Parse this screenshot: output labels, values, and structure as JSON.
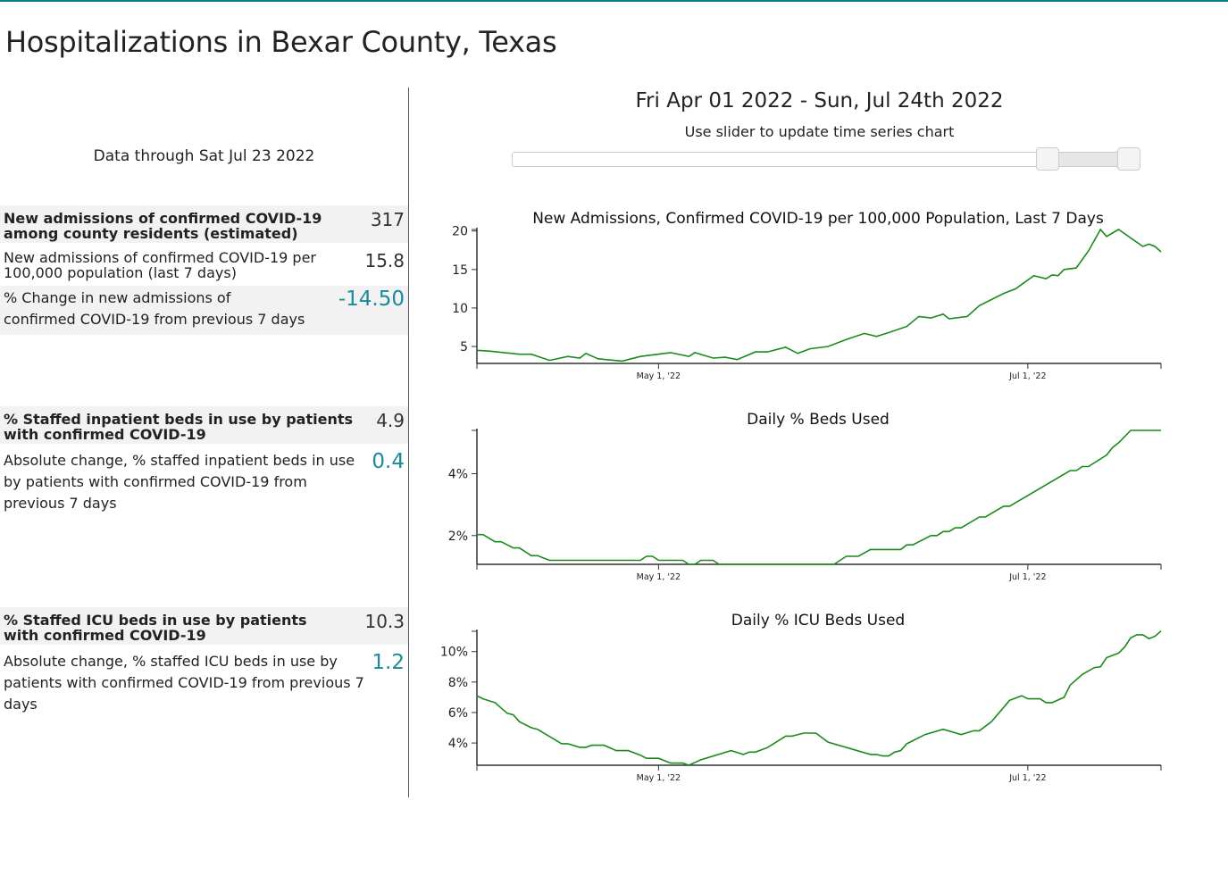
{
  "page": {
    "title": "Hospitalizations in Bexar County, Texas",
    "data_through": "Data through Sat Jul 23 2022"
  },
  "metrics": [
    {
      "label": "New admissions of confirmed COVID-19 among county residents (estimated)",
      "value": "317"
    },
    {
      "label": "New admissions of confirmed COVID-19 per 100,000 population (last 7 days)",
      "value": "15.8"
    },
    {
      "label": "% Change in new admissions of confirmed COVID-19 from previous 7 days",
      "value": "-14.50"
    },
    {
      "label": "% Staffed inpatient beds in use by patients with confirmed COVID-19",
      "value": "4.9"
    },
    {
      "label": "Absolute change, % staffed inpatient beds in use by patients with confirmed COVID-19 from previous 7 days",
      "value": "0.4"
    },
    {
      "label": "% Staffed ICU beds in use by patients with confirmed COVID-19",
      "value": "10.3"
    },
    {
      "label": "Absolute change, % staffed ICU beds in use by patients with confirmed COVID-19 from previous 7 days",
      "value": "1.2"
    }
  ],
  "range": {
    "label": "Fri Apr 01 2022 - Sun, Jul 24th 2022",
    "hint": "Use slider to update time series chart",
    "slider_start_fraction": 0.86,
    "slider_end_fraction": 0.99
  },
  "colors": {
    "line": "#1a8a1a",
    "accent": "#1a8a9c"
  },
  "chart_data": [
    {
      "type": "line",
      "title": "New Admissions, Confirmed COVID-19 per 100,000 Population, Last 7 Days",
      "xlabel": "",
      "ylabel": "",
      "x_unit": "days since Apr 1 2022",
      "xlim": [
        0,
        113
      ],
      "ylim": [
        2.8,
        20.2
      ],
      "y_ticks": [
        {
          "v": 5,
          "label": "5"
        },
        {
          "v": 10,
          "label": "10"
        },
        {
          "v": 15,
          "label": "15"
        },
        {
          "v": 20,
          "label": "20"
        }
      ],
      "x_ticks": [
        {
          "v": 30,
          "label": "May 1, '22"
        },
        {
          "v": 91,
          "label": "Jul 1, '22"
        }
      ],
      "x": [
        0,
        2,
        7,
        9,
        12,
        15,
        17,
        18,
        20,
        24,
        27,
        32,
        35,
        36,
        39,
        41,
        43,
        46,
        48,
        51,
        53,
        55,
        58,
        61,
        64,
        66,
        68,
        71,
        73,
        75,
        77,
        78,
        81,
        83,
        87,
        89,
        92,
        94,
        95,
        96,
        97,
        99,
        101,
        103,
        104,
        106,
        110,
        111,
        112,
        113
      ],
      "y": [
        4.5,
        4.4,
        4.0,
        4.0,
        3.2,
        3.7,
        3.5,
        4.1,
        3.4,
        3.1,
        3.7,
        4.2,
        3.7,
        4.2,
        3.5,
        3.6,
        3.3,
        4.3,
        4.3,
        4.9,
        4.1,
        4.7,
        5.0,
        5.9,
        6.7,
        6.3,
        6.8,
        7.6,
        8.9,
        8.7,
        9.2,
        8.6,
        8.9,
        10.3,
        11.9,
        12.5,
        14.2,
        13.8,
        14.3,
        14.2,
        15.0,
        15.2,
        17.4,
        20.2,
        19.3,
        20.2,
        18.0,
        18.3,
        18.0,
        17.3
      ]
    },
    {
      "type": "line",
      "title": "Daily % Beds Used",
      "xlabel": "",
      "ylabel": "",
      "x_unit": "days since Apr 1 2022",
      "xlim": [
        0,
        113
      ],
      "ylim": [
        1.07,
        5.4
      ],
      "y_ticks": [
        {
          "v": 2,
          "label": "2%"
        },
        {
          "v": 4,
          "label": "4%"
        }
      ],
      "x_ticks": [
        {
          "v": 30,
          "label": "May 1, '22"
        },
        {
          "v": 91,
          "label": "Jul 1, '22"
        }
      ],
      "x": [
        0,
        1,
        3,
        4,
        6,
        7,
        9,
        10,
        12,
        27,
        28,
        29,
        30,
        34,
        35,
        36,
        37,
        39,
        40,
        59,
        61,
        63,
        65,
        70,
        71,
        72,
        75,
        76,
        77,
        78,
        79,
        80,
        83,
        84,
        87,
        88,
        98,
        99,
        100,
        101,
        104,
        105,
        106,
        108,
        113
      ],
      "y": [
        2.03,
        2.03,
        1.8,
        1.8,
        1.6,
        1.6,
        1.35,
        1.35,
        1.2,
        1.2,
        1.33,
        1.33,
        1.2,
        1.2,
        1.07,
        1.07,
        1.2,
        1.2,
        1.07,
        1.07,
        1.33,
        1.33,
        1.55,
        1.55,
        1.7,
        1.7,
        2.0,
        2.0,
        2.13,
        2.13,
        2.25,
        2.25,
        2.6,
        2.6,
        2.95,
        2.95,
        4.1,
        4.1,
        4.23,
        4.23,
        4.6,
        4.85,
        5.0,
        5.4,
        5.4
      ]
    },
    {
      "type": "line",
      "title": "Daily % ICU Beds Used",
      "xlabel": "",
      "ylabel": "",
      "x_unit": "days since Apr 1 2022",
      "xlim": [
        0,
        113
      ],
      "ylim": [
        2.54,
        11.33
      ],
      "y_ticks": [
        {
          "v": 4,
          "label": "4%"
        },
        {
          "v": 6,
          "label": "6%"
        },
        {
          "v": 8,
          "label": "8%"
        },
        {
          "v": 10,
          "label": "10%"
        }
      ],
      "x_ticks": [
        {
          "v": 30,
          "label": "May 1, '22"
        },
        {
          "v": 91,
          "label": "Jul 1, '22"
        }
      ],
      "x": [
        0,
        1,
        3,
        5,
        6,
        7,
        9,
        10,
        14,
        15,
        17,
        18,
        19,
        21,
        23,
        25,
        27,
        28,
        30,
        32,
        34,
        35,
        37,
        42,
        44,
        45,
        46,
        48,
        51,
        52,
        54,
        56,
        58,
        65,
        66,
        67,
        68,
        69,
        70,
        71,
        74,
        77,
        80,
        82,
        83,
        85,
        88,
        90,
        91,
        93,
        94,
        95,
        97,
        98,
        100,
        102,
        103,
        104,
        106,
        107,
        108,
        109,
        110,
        111,
        112,
        113
      ],
      "y": [
        7.1,
        6.9,
        6.65,
        5.95,
        5.85,
        5.4,
        5.0,
        4.9,
        3.95,
        3.95,
        3.72,
        3.72,
        3.85,
        3.85,
        3.5,
        3.5,
        3.2,
        3.0,
        3.0,
        2.68,
        2.68,
        2.54,
        2.9,
        3.5,
        3.25,
        3.4,
        3.4,
        3.7,
        4.45,
        4.45,
        4.65,
        4.65,
        4.05,
        3.25,
        3.25,
        3.15,
        3.15,
        3.4,
        3.5,
        3.95,
        4.55,
        4.9,
        4.55,
        4.8,
        4.8,
        5.4,
        6.8,
        7.1,
        6.9,
        6.9,
        6.65,
        6.65,
        7.0,
        7.8,
        8.5,
        8.95,
        9.0,
        9.6,
        9.9,
        10.3,
        10.9,
        11.1,
        11.1,
        10.85,
        11.0,
        11.35
      ]
    }
  ]
}
